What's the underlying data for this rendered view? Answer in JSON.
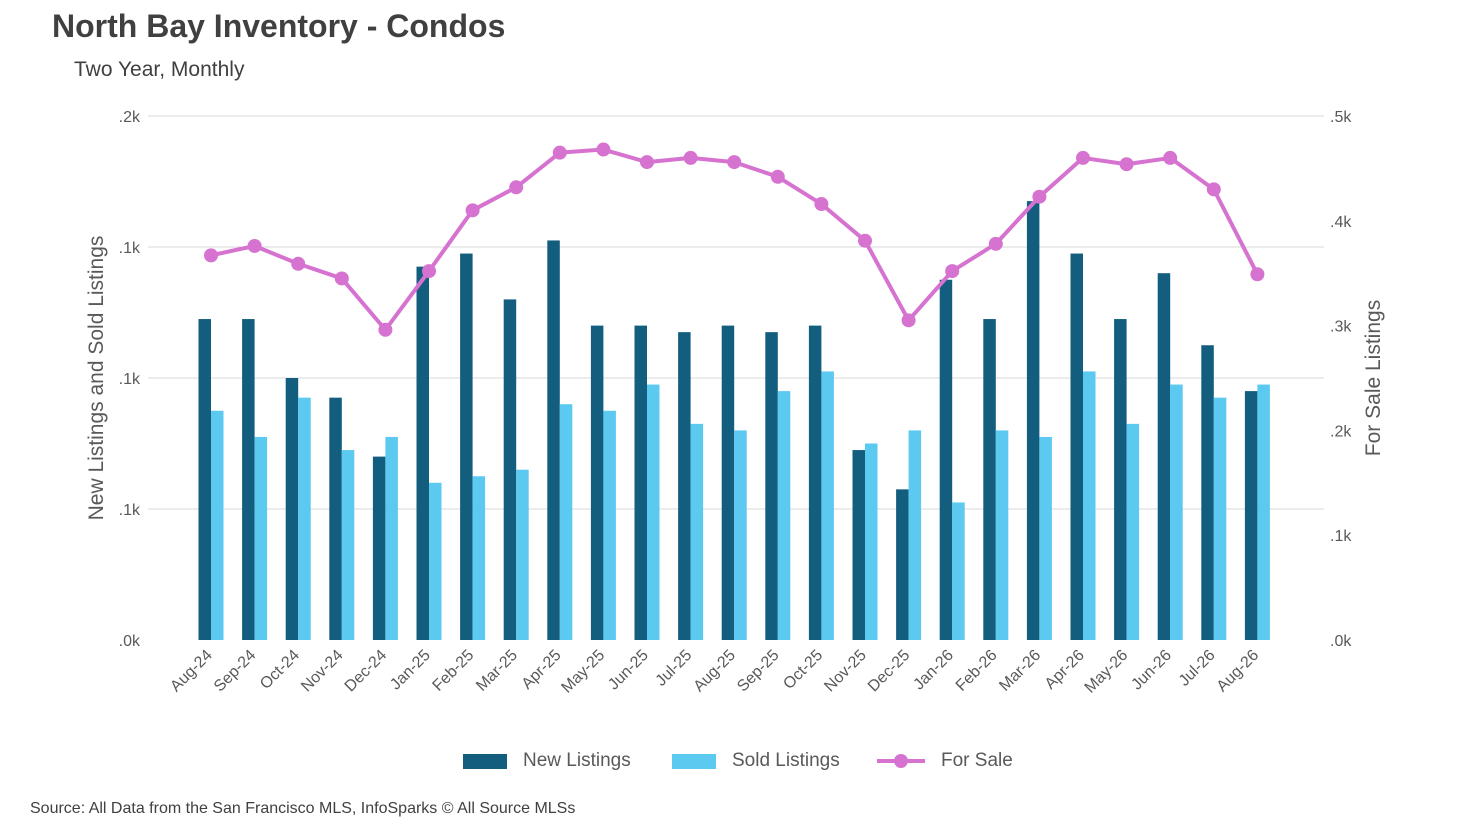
{
  "chart_data": {
    "type": "bar",
    "title": "North Bay Inventory - Condos",
    "subtitle": "Two Year, Monthly",
    "categories": [
      "Aug-24",
      "Sep-24",
      "Oct-24",
      "Nov-24",
      "Dec-24",
      "Jan-25",
      "Feb-25",
      "Mar-25",
      "Apr-25",
      "May-25",
      "Jun-25",
      "Jul-25",
      "Aug-25",
      "Sep-25",
      "Oct-25",
      "Nov-25",
      "Dec-25",
      "Jan-26",
      "Feb-26",
      "Mar-26",
      "Apr-26",
      "May-26",
      "Jun-26",
      "Jul-26",
      "Aug-26"
    ],
    "series": [
      {
        "name": "New Listings",
        "type": "bar",
        "axis": "left",
        "color": "#135e7e",
        "values": [
          49,
          49,
          40,
          37,
          28,
          57,
          59,
          52,
          61,
          48,
          48,
          47,
          48,
          47,
          48,
          29,
          23,
          55,
          49,
          67,
          59,
          49,
          56,
          45,
          38
        ]
      },
      {
        "name": "Sold Listings",
        "type": "bar",
        "axis": "left",
        "color": "#5bc9f0",
        "values": [
          35,
          31,
          37,
          29,
          31,
          24,
          25,
          26,
          36,
          35,
          39,
          33,
          32,
          38,
          41,
          30,
          32,
          21,
          32,
          31,
          41,
          33,
          39,
          37,
          39
        ]
      },
      {
        "name": "For Sale",
        "type": "line",
        "axis": "right",
        "color": "#d672cf",
        "values": [
          367,
          376,
          359,
          345,
          296,
          352,
          410,
          432,
          465,
          468,
          456,
          460,
          456,
          442,
          416,
          381,
          305,
          352,
          378,
          423,
          460,
          454,
          460,
          430,
          349
        ]
      }
    ],
    "left_axis": {
      "label": "New Listings and Sold Listings",
      "ticks": [
        ".0k",
        ".1k",
        ".1k",
        ".1k",
        ".2k"
      ],
      "ylim": [
        0,
        80
      ]
    },
    "right_axis": {
      "label": "For Sale Listings",
      "ticks": [
        ".0k",
        ".1k",
        ".2k",
        ".3k",
        ".4k",
        ".5k"
      ],
      "ylim": [
        0,
        500
      ]
    },
    "grid": true,
    "legend": "bottom"
  },
  "legend_labels": [
    "New Listings",
    "Sold Listings",
    "For Sale"
  ],
  "source_note": "Source: All Data from the San Francisco MLS, InfoSparks © All Source MLSs"
}
